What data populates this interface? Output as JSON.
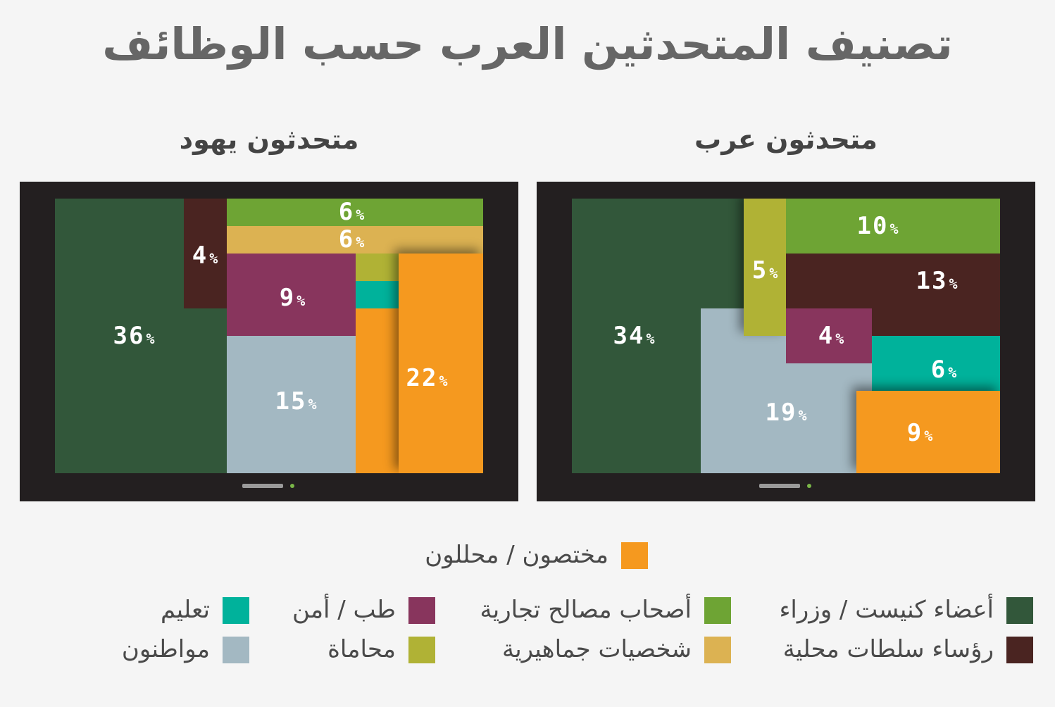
{
  "title": "تصنيف المتحدثين العرب حسب الوظائف",
  "colors": {
    "knesset": "#32573a",
    "local": "#4a2421",
    "business": "#6ea434",
    "public": "#dcb252",
    "medicine": "#88355d",
    "lawyers": "#b0b235",
    "education": "#00b29b",
    "citizens": "#a3b8c2",
    "experts": "#f5991f",
    "monitor": "#231f20",
    "background": "#f5f5f5"
  },
  "legend": {
    "knesset": "أعضاء كنيست / وزراء",
    "local": "رؤساء سلطات محلية",
    "business": "أصحاب مصالح تجارية",
    "public": "شخصيات جماهيرية",
    "medicine": "طب / أمن",
    "lawyers": "محاماة",
    "education": "تعليم",
    "citizens": "مواطنون",
    "experts": "مختصون / محللون"
  },
  "chart_data": [
    {
      "type": "treemap",
      "title": "متحدثون عرب",
      "unit": "%",
      "values": [
        {
          "category": "أعضاء كنيست / وزراء",
          "value": 34
        },
        {
          "category": "مواطنون",
          "value": 19
        },
        {
          "category": "رؤساء سلطات محلية",
          "value": 13
        },
        {
          "category": "أصحاب مصالح تجارية",
          "value": 10
        },
        {
          "category": "مختصون / محللون",
          "value": 9
        },
        {
          "category": "تعليم",
          "value": 6
        },
        {
          "category": "محاماة",
          "value": 5
        },
        {
          "category": "طب / أمن",
          "value": 4
        }
      ]
    },
    {
      "type": "treemap",
      "title": "متحدثون يهود",
      "unit": "%",
      "values": [
        {
          "category": "أعضاء كنيست / وزراء",
          "value": 36
        },
        {
          "category": "مختصون / محللون",
          "value": 22
        },
        {
          "category": "مواطنون",
          "value": 15
        },
        {
          "category": "طب / أمن",
          "value": 9
        },
        {
          "category": "أصحاب مصالح تجارية",
          "value": 6
        },
        {
          "category": "شخصيات جماهيرية",
          "value": 6
        },
        {
          "category": "رؤساء سلطات محلية",
          "value": 4
        }
      ]
    }
  ]
}
